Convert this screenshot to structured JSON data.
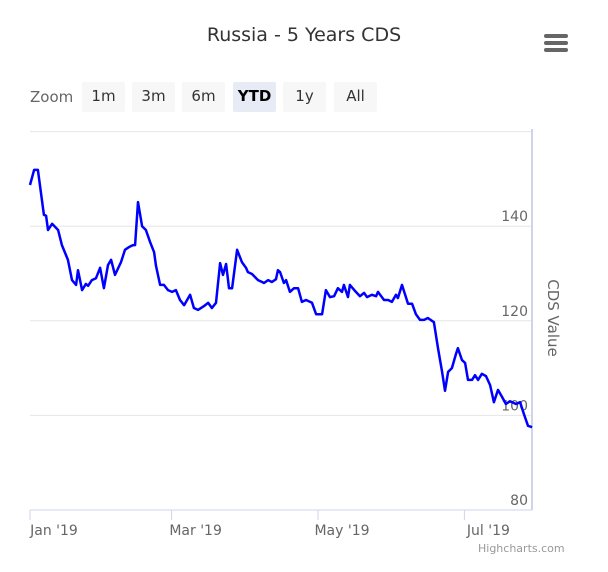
{
  "chart_data": {
    "type": "line",
    "title": "Russia - 5 Years CDS",
    "ylabel": "CDS Value",
    "xlabel": "",
    "ylim": [
      80,
      160
    ],
    "yticks": [
      80,
      100,
      120,
      140
    ],
    "ytick_labels": [
      "80",
      "100",
      "120",
      "140"
    ],
    "x_unit": "days since Jan 1 2019",
    "xlim": [
      0,
      209
    ],
    "xticks": [
      0,
      59,
      120,
      181
    ],
    "xtick_labels": [
      "Jan '19",
      "Mar '19",
      "May '19",
      "Jul '19"
    ],
    "grid": true,
    "series": [
      {
        "name": "CDS Value",
        "color": "#0000ff",
        "points": [
          [
            0,
            148.7
          ],
          [
            1.7,
            151.9
          ],
          [
            3.3,
            151.9
          ],
          [
            5.8,
            142.4
          ],
          [
            6.7,
            142.2
          ],
          [
            7.5,
            139.2
          ],
          [
            9.2,
            140.5
          ],
          [
            11.7,
            139.2
          ],
          [
            13.3,
            136.0
          ],
          [
            15,
            133.9
          ],
          [
            15.8,
            132.9
          ],
          [
            17.5,
            128.6
          ],
          [
            19.2,
            127.6
          ],
          [
            20,
            130.7
          ],
          [
            21.7,
            126.5
          ],
          [
            23.3,
            127.8
          ],
          [
            24.2,
            127.4
          ],
          [
            25.8,
            128.6
          ],
          [
            27.5,
            129.0
          ],
          [
            29.2,
            131.2
          ],
          [
            30.8,
            126.9
          ],
          [
            32.5,
            131.8
          ],
          [
            33.8,
            132.9
          ],
          [
            35.4,
            129.7
          ],
          [
            37.9,
            132.4
          ],
          [
            39.6,
            135.0
          ],
          [
            41.3,
            135.6
          ],
          [
            42.9,
            136.0
          ],
          [
            43.8,
            136.0
          ],
          [
            45,
            145.1
          ],
          [
            46.7,
            140.0
          ],
          [
            48.3,
            139.2
          ],
          [
            50,
            136.7
          ],
          [
            51.7,
            134.5
          ],
          [
            52.5,
            131.6
          ],
          [
            54.2,
            127.6
          ],
          [
            55.8,
            127.6
          ],
          [
            57.5,
            126.5
          ],
          [
            59.2,
            126.1
          ],
          [
            60.8,
            126.5
          ],
          [
            62.5,
            124.4
          ],
          [
            64.2,
            123.3
          ],
          [
            66.7,
            125.5
          ],
          [
            68.3,
            122.7
          ],
          [
            70,
            122.3
          ],
          [
            72.5,
            123.1
          ],
          [
            74.2,
            123.8
          ],
          [
            75.8,
            122.7
          ],
          [
            77.5,
            123.8
          ],
          [
            79.2,
            132.2
          ],
          [
            80.4,
            129.7
          ],
          [
            81.7,
            132.0
          ],
          [
            82.9,
            126.9
          ],
          [
            84.2,
            126.9
          ],
          [
            86.3,
            135.0
          ],
          [
            88.3,
            132.4
          ],
          [
            90,
            131.2
          ],
          [
            90.8,
            130.3
          ],
          [
            92.5,
            129.9
          ],
          [
            95,
            128.6
          ],
          [
            96.7,
            128.2
          ],
          [
            97.5,
            128.0
          ],
          [
            99.2,
            128.6
          ],
          [
            100.8,
            128.2
          ],
          [
            102.5,
            128.8
          ],
          [
            103.3,
            130.7
          ],
          [
            104.2,
            130.3
          ],
          [
            105.8,
            128.0
          ],
          [
            106.7,
            128.6
          ],
          [
            108.3,
            126.1
          ],
          [
            110,
            126.9
          ],
          [
            111.7,
            126.9
          ],
          [
            113.3,
            124.0
          ],
          [
            115,
            124.4
          ],
          [
            117.5,
            123.8
          ],
          [
            119.2,
            121.4
          ],
          [
            121.7,
            121.4
          ],
          [
            123.3,
            126.5
          ],
          [
            125,
            125.0
          ],
          [
            126.7,
            125.2
          ],
          [
            128.3,
            126.9
          ],
          [
            130,
            126.1
          ],
          [
            130.8,
            127.6
          ],
          [
            132.5,
            125.0
          ],
          [
            133.3,
            127.6
          ],
          [
            135.8,
            126.1
          ],
          [
            137.5,
            125.2
          ],
          [
            139.2,
            125.9
          ],
          [
            140.4,
            125.0
          ],
          [
            142.5,
            125.5
          ],
          [
            144.2,
            125.2
          ],
          [
            145,
            126.1
          ],
          [
            147.5,
            124.4
          ],
          [
            149.2,
            124.4
          ],
          [
            150.8,
            124.0
          ],
          [
            152.5,
            125.5
          ],
          [
            153.3,
            124.8
          ],
          [
            155,
            127.6
          ],
          [
            157.5,
            123.6
          ],
          [
            159.2,
            123.6
          ],
          [
            160.8,
            121.4
          ],
          [
            162.5,
            120.2
          ],
          [
            164.2,
            120.2
          ],
          [
            165.8,
            120.6
          ],
          [
            168.3,
            119.7
          ],
          [
            170,
            114.2
          ],
          [
            171.7,
            109.2
          ],
          [
            172.9,
            105.2
          ],
          [
            174.2,
            109.2
          ],
          [
            175.8,
            110.0
          ],
          [
            177.5,
            113.0
          ],
          [
            178.3,
            114.2
          ],
          [
            180,
            111.7
          ],
          [
            181.3,
            111.1
          ],
          [
            182.5,
            107.5
          ],
          [
            184.2,
            107.5
          ],
          [
            185.4,
            108.5
          ],
          [
            186.7,
            107.5
          ],
          [
            188.3,
            108.8
          ],
          [
            190,
            108.3
          ],
          [
            191.7,
            106.4
          ],
          [
            193.3,
            102.8
          ],
          [
            195,
            105.4
          ],
          [
            196.7,
            103.9
          ],
          [
            198.3,
            102.4
          ],
          [
            200,
            103.0
          ],
          [
            202.5,
            102.4
          ],
          [
            204.2,
            102.8
          ],
          [
            205.8,
            100.3
          ],
          [
            207.5,
            97.8
          ],
          [
            209.2,
            97.5
          ]
        ]
      }
    ]
  },
  "range_selector": {
    "label": "Zoom",
    "buttons": [
      "1m",
      "3m",
      "6m",
      "YTD",
      "1y",
      "All"
    ],
    "selected": "YTD"
  },
  "menu_icon": "hamburger-menu-icon",
  "credits": "Highcharts.com"
}
